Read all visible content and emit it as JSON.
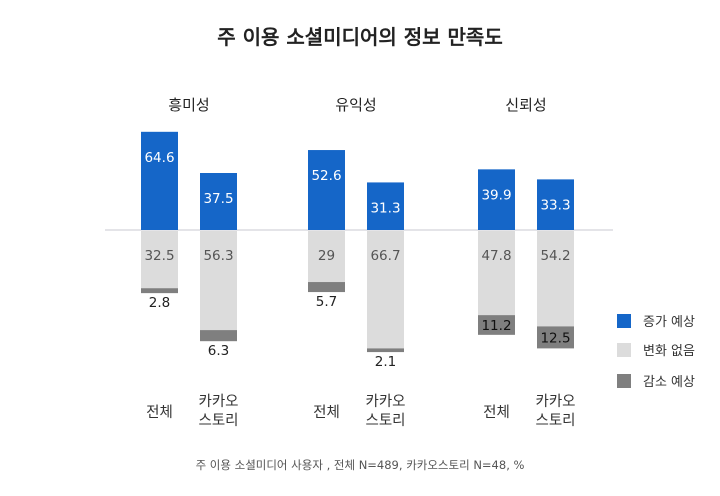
{
  "chart_data": {
    "type": "bar",
    "title": "주 이용 소셜미디어의 정보 만족도",
    "footnote": "주 이용 소셜미디어 사용자 , 전체 N=489, 카카오스토리 N=48, %",
    "groups": [
      {
        "name": "흥미성",
        "bars": [
          {
            "category": [
              "전체"
            ],
            "increase": 64.6,
            "no_change": 32.5,
            "decrease": 2.8
          },
          {
            "category": [
              "카카오",
              "스토리"
            ],
            "increase": 37.5,
            "no_change": 56.3,
            "decrease": 6.3
          }
        ]
      },
      {
        "name": "유익성",
        "bars": [
          {
            "category": [
              "전체"
            ],
            "increase": 52.6,
            "no_change": 29,
            "decrease": 5.7
          },
          {
            "category": [
              "카카오",
              "스토리"
            ],
            "increase": 31.3,
            "no_change": 66.7,
            "decrease": 2.1
          }
        ]
      },
      {
        "name": "신뢰성",
        "bars": [
          {
            "category": [
              "전체"
            ],
            "increase": 39.9,
            "no_change": 47.8,
            "decrease": 11.2
          },
          {
            "category": [
              "카카오",
              "스토리"
            ],
            "increase": 33.3,
            "no_change": 54.2,
            "decrease": 12.5
          }
        ]
      }
    ],
    "series": [
      {
        "key": "increase",
        "name": "증가 예상",
        "color": "#1566C8"
      },
      {
        "key": "no_change",
        "name": "변화 없음",
        "color": "#DCDCDC"
      },
      {
        "key": "decrease",
        "name": "감소 예상",
        "color": "#7F7F7F"
      }
    ],
    "legend_position": "right",
    "grid": false
  }
}
